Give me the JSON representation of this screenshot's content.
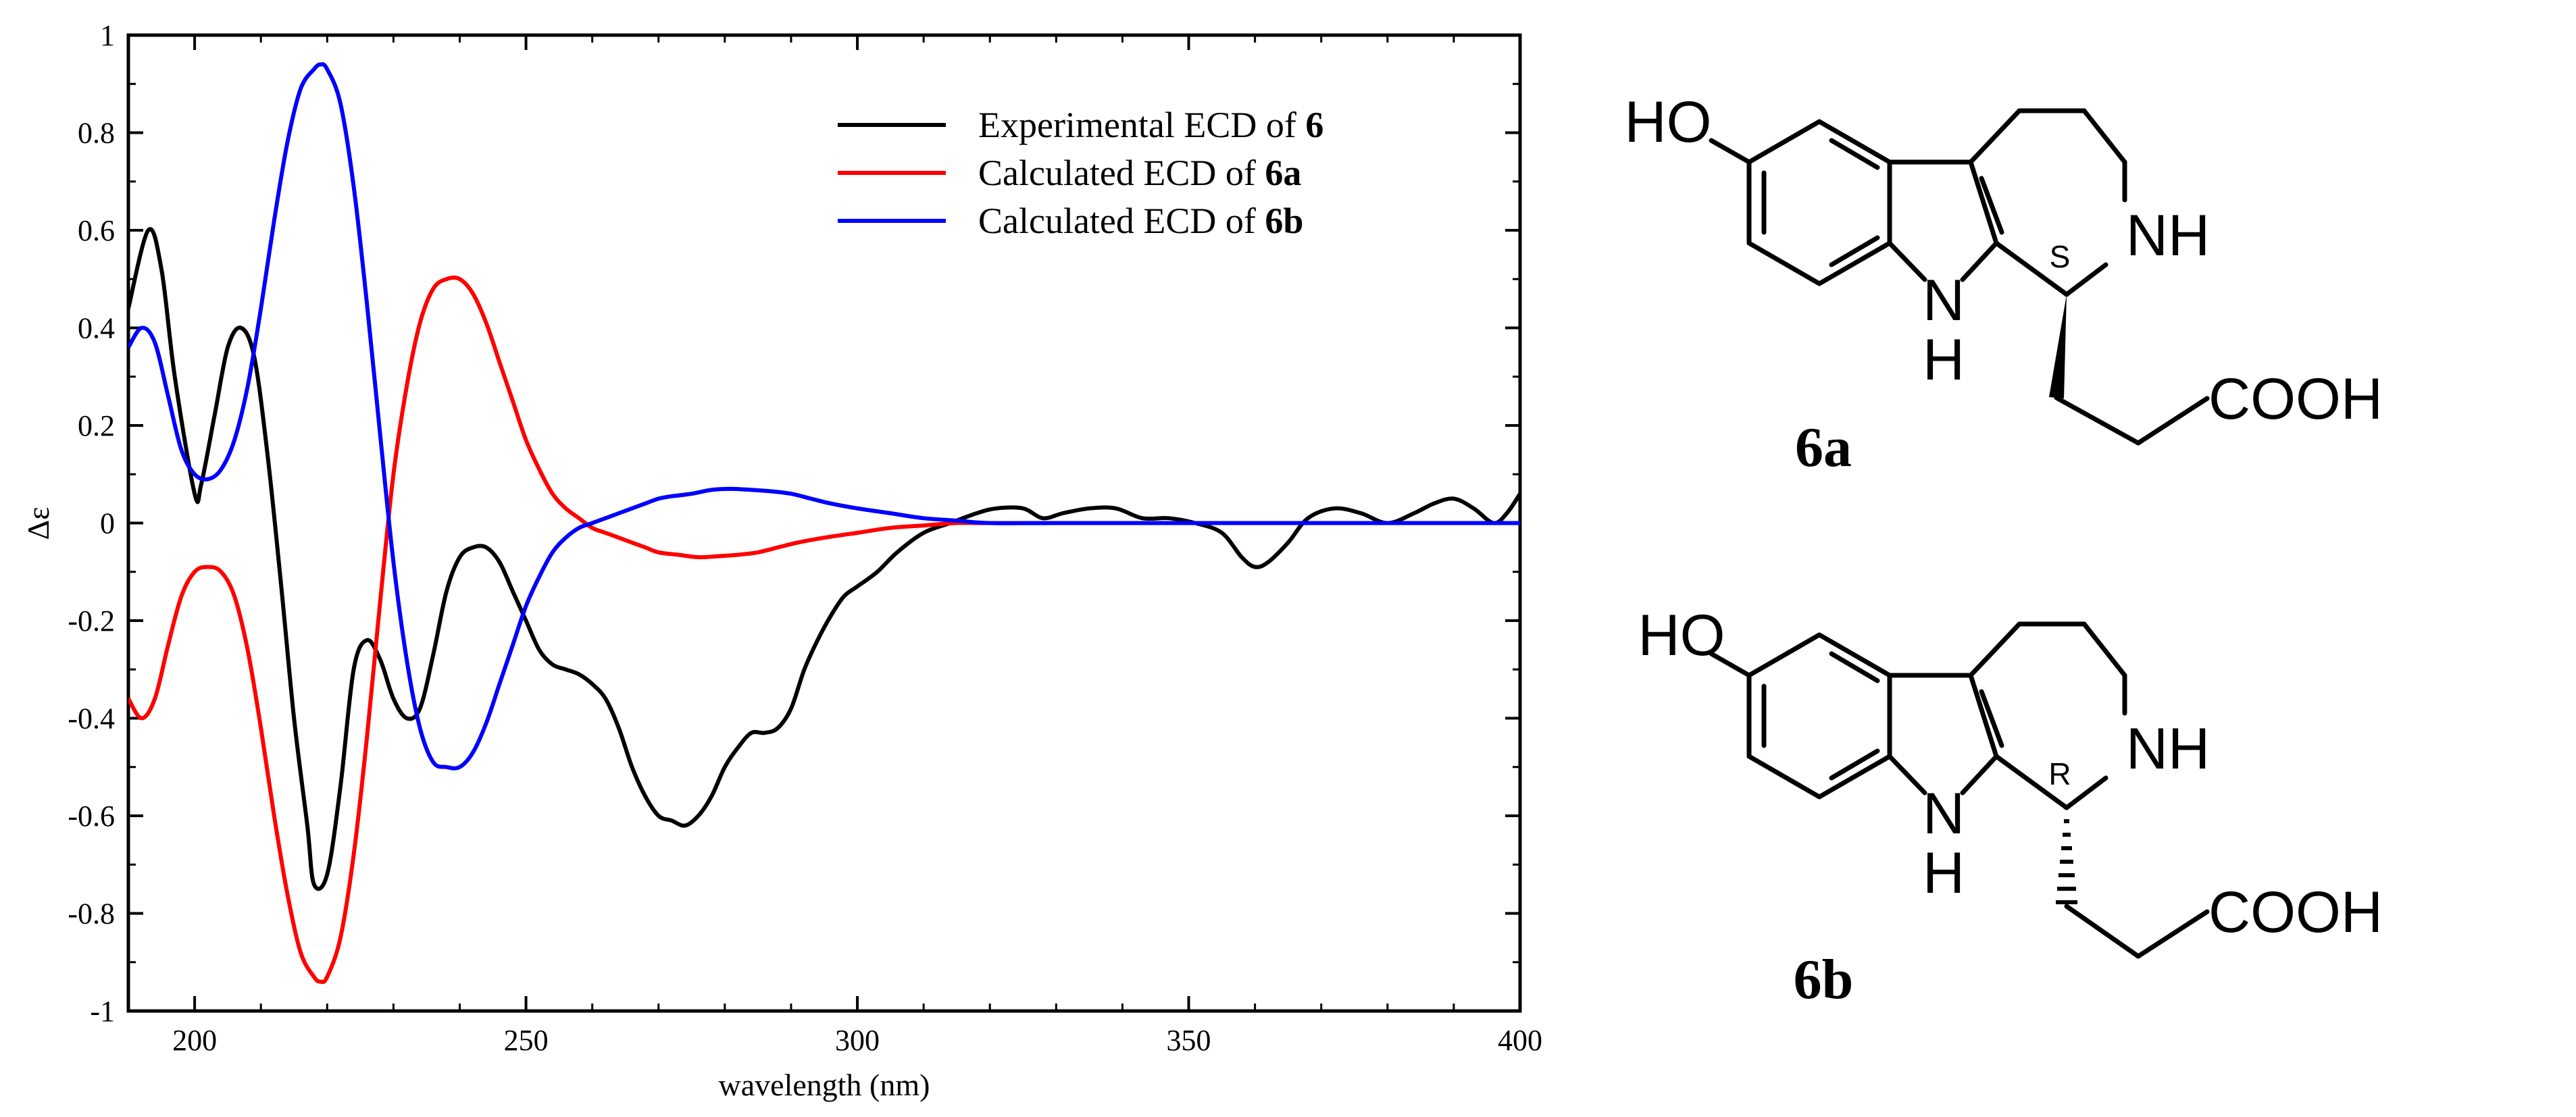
{
  "chart_data": {
    "type": "line",
    "xlabel": "wavelength (nm)",
    "ylabel": "Δε",
    "xlim": [
      190,
      400
    ],
    "ylim": [
      -1,
      1
    ],
    "xticks": [
      200,
      250,
      300,
      350,
      400
    ],
    "xtick_labels": [
      "200",
      "250",
      "300",
      "350",
      "400"
    ],
    "yticks": [
      1,
      0.8,
      0.6,
      0.4,
      0.2,
      0,
      -0.2,
      -0.4,
      -0.6,
      -0.8,
      -1
    ],
    "ytick_labels": [
      "1",
      "0.8",
      "0.6",
      "0.4",
      "0.2",
      "0",
      "-0.2",
      "-0.4",
      "-0.6",
      "-0.8",
      "-1"
    ],
    "grid": false,
    "legend_position": "top-right",
    "series": [
      {
        "name": "Experimental ECD of 6",
        "legend_prefix": "Experimental ECD of ",
        "legend_bold": "6",
        "color": "#000000",
        "x": [
          190,
          193,
          195,
          197,
          200,
          201,
          203,
          205,
          207,
          209,
          211,
          213,
          215,
          217,
          218,
          220,
          222,
          224,
          226,
          228,
          230,
          232,
          234,
          236,
          238,
          240,
          242,
          244,
          246,
          248,
          250,
          252,
          254,
          256,
          258,
          260,
          262,
          264,
          266,
          268,
          270,
          272,
          274,
          276,
          278,
          280,
          282,
          284,
          286,
          288,
          290,
          292,
          294,
          296,
          298,
          300,
          303,
          306,
          310,
          314,
          318,
          321,
          325,
          328,
          331,
          335,
          339,
          343,
          347,
          351,
          355,
          358,
          360,
          362,
          365,
          368,
          372,
          376,
          380,
          384,
          387,
          390,
          393,
          396,
          398,
          400
        ],
        "y": [
          0.44,
          0.6,
          0.52,
          0.3,
          0.06,
          0.08,
          0.22,
          0.36,
          0.4,
          0.34,
          0.14,
          -0.12,
          -0.4,
          -0.62,
          -0.74,
          -0.72,
          -0.54,
          -0.3,
          -0.24,
          -0.28,
          -0.36,
          -0.4,
          -0.38,
          -0.27,
          -0.14,
          -0.07,
          -0.05,
          -0.05,
          -0.08,
          -0.14,
          -0.2,
          -0.26,
          -0.29,
          -0.3,
          -0.31,
          -0.33,
          -0.36,
          -0.42,
          -0.5,
          -0.56,
          -0.6,
          -0.61,
          -0.62,
          -0.6,
          -0.56,
          -0.5,
          -0.46,
          -0.43,
          -0.43,
          -0.42,
          -0.38,
          -0.3,
          -0.24,
          -0.19,
          -0.15,
          -0.13,
          -0.1,
          -0.06,
          -0.02,
          0.0,
          0.02,
          0.03,
          0.03,
          0.01,
          0.02,
          0.03,
          0.03,
          0.01,
          0.01,
          0.0,
          -0.02,
          -0.07,
          -0.09,
          -0.08,
          -0.04,
          0.01,
          0.03,
          0.02,
          0.0,
          0.02,
          0.04,
          0.05,
          0.03,
          0.0,
          0.02,
          0.06
        ]
      },
      {
        "name": "Calculated ECD of 6a",
        "legend_prefix": "Calculated ECD of ",
        "legend_bold": "6a",
        "color": "#ff0000",
        "x": [
          190,
          192,
          194,
          196,
          198,
          200,
          202,
          204,
          206,
          208,
          210,
          212,
          214,
          216,
          218,
          219,
          220,
          222,
          224,
          226,
          228,
          230,
          232,
          234,
          236,
          238,
          240,
          242,
          244,
          246,
          248,
          250,
          252,
          254,
          256,
          258,
          260,
          262,
          264,
          266,
          268,
          270,
          273,
          276,
          279,
          282,
          285,
          288,
          291,
          295,
          300,
          305,
          310,
          315,
          320,
          330,
          350,
          400
        ],
        "y": [
          -0.36,
          -0.4,
          -0.36,
          -0.25,
          -0.15,
          -0.1,
          -0.09,
          -0.1,
          -0.15,
          -0.26,
          -0.42,
          -0.6,
          -0.76,
          -0.88,
          -0.93,
          -0.94,
          -0.93,
          -0.85,
          -0.68,
          -0.44,
          -0.16,
          0.1,
          0.28,
          0.41,
          0.48,
          0.5,
          0.5,
          0.47,
          0.41,
          0.33,
          0.25,
          0.17,
          0.11,
          0.06,
          0.03,
          0.01,
          -0.01,
          -0.02,
          -0.03,
          -0.04,
          -0.05,
          -0.06,
          -0.065,
          -0.07,
          -0.068,
          -0.065,
          -0.06,
          -0.05,
          -0.04,
          -0.03,
          -0.02,
          -0.01,
          -0.005,
          0.0,
          0.0,
          0.0,
          0.0,
          0.0
        ]
      },
      {
        "name": "Calculated ECD of 6b",
        "legend_prefix": "Calculated ECD of ",
        "legend_bold": "6b",
        "color": "#0000ff",
        "x": [
          190,
          192,
          194,
          196,
          198,
          200,
          202,
          204,
          206,
          208,
          210,
          212,
          214,
          216,
          218,
          219,
          220,
          222,
          224,
          226,
          228,
          230,
          232,
          234,
          236,
          238,
          240,
          242,
          244,
          246,
          248,
          250,
          252,
          254,
          256,
          258,
          260,
          262,
          264,
          266,
          268,
          270,
          272,
          275,
          278,
          281,
          284,
          287,
          290,
          293,
          296,
          300,
          305,
          310,
          315,
          320,
          330,
          350,
          400
        ],
        "y": [
          0.36,
          0.4,
          0.37,
          0.26,
          0.15,
          0.1,
          0.09,
          0.11,
          0.17,
          0.28,
          0.44,
          0.62,
          0.78,
          0.89,
          0.93,
          0.94,
          0.93,
          0.86,
          0.69,
          0.45,
          0.18,
          -0.08,
          -0.28,
          -0.42,
          -0.49,
          -0.5,
          -0.5,
          -0.47,
          -0.41,
          -0.33,
          -0.25,
          -0.17,
          -0.11,
          -0.06,
          -0.03,
          -0.01,
          0.0,
          0.01,
          0.02,
          0.03,
          0.04,
          0.05,
          0.055,
          0.06,
          0.068,
          0.07,
          0.068,
          0.065,
          0.06,
          0.05,
          0.04,
          0.03,
          0.02,
          0.01,
          0.005,
          0.0,
          0.0,
          0.0,
          0.0
        ]
      }
    ]
  },
  "structures": [
    {
      "id": "6a",
      "label": "6a",
      "ho_label": "HO",
      "nh_ring_label": "NH",
      "indole_n_label": "N",
      "indole_h_label": "H",
      "acid_label": "COOH",
      "stereo_label": "S",
      "stereo_bond": "wedge"
    },
    {
      "id": "6b",
      "label": "6b",
      "ho_label": "HO",
      "nh_ring_label": "NH",
      "indole_n_label": "N",
      "indole_h_label": "H",
      "acid_label": "COOH",
      "stereo_label": "R",
      "stereo_bond": "hash"
    }
  ]
}
